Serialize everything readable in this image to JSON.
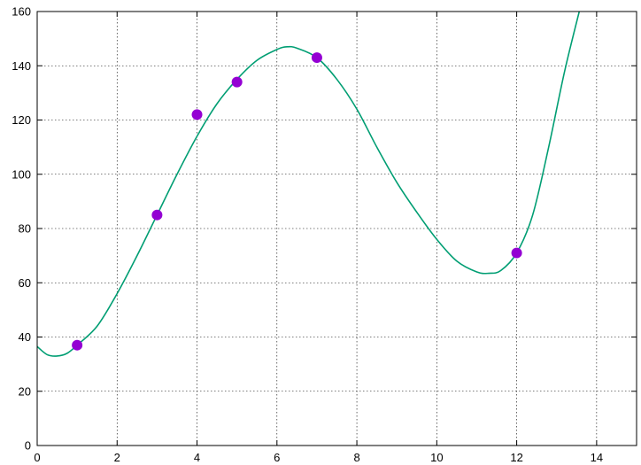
{
  "chart_data": {
    "type": "scatter",
    "title": "",
    "xlabel": "",
    "ylabel": "",
    "xlim": [
      0,
      15
    ],
    "ylim": [
      0,
      160
    ],
    "grid": true,
    "x_ticks": [
      "0",
      "2",
      "4",
      "6",
      "8",
      "10",
      "12",
      "14"
    ],
    "y_ticks": [
      "0",
      "20",
      "40",
      "60",
      "80",
      "100",
      "120",
      "140",
      "160"
    ],
    "series": [
      {
        "type": "scatter",
        "color": "#9400d3",
        "points": [
          {
            "x": 1,
            "y": 37
          },
          {
            "x": 3,
            "y": 85
          },
          {
            "x": 4,
            "y": 122
          },
          {
            "x": 5,
            "y": 134
          },
          {
            "x": 7,
            "y": 143
          },
          {
            "x": 12,
            "y": 71
          }
        ]
      },
      {
        "type": "line",
        "color": "#009e73",
        "points": [
          {
            "x": 0,
            "y": 36.5
          },
          {
            "x": 0.25,
            "y": 33.5
          },
          {
            "x": 0.5,
            "y": 33
          },
          {
            "x": 0.75,
            "y": 34
          },
          {
            "x": 1,
            "y": 37
          },
          {
            "x": 1.5,
            "y": 44
          },
          {
            "x": 2,
            "y": 56
          },
          {
            "x": 2.5,
            "y": 70
          },
          {
            "x": 3,
            "y": 85
          },
          {
            "x": 3.5,
            "y": 100
          },
          {
            "x": 4,
            "y": 114
          },
          {
            "x": 4.5,
            "y": 126
          },
          {
            "x": 5,
            "y": 135
          },
          {
            "x": 5.5,
            "y": 142
          },
          {
            "x": 6,
            "y": 146
          },
          {
            "x": 6.25,
            "y": 147
          },
          {
            "x": 6.5,
            "y": 146.5
          },
          {
            "x": 7,
            "y": 143
          },
          {
            "x": 7.5,
            "y": 135
          },
          {
            "x": 8,
            "y": 124
          },
          {
            "x": 8.5,
            "y": 110
          },
          {
            "x": 9,
            "y": 97
          },
          {
            "x": 9.5,
            "y": 86
          },
          {
            "x": 10,
            "y": 76
          },
          {
            "x": 10.5,
            "y": 68
          },
          {
            "x": 11,
            "y": 64
          },
          {
            "x": 11.3,
            "y": 63.5
          },
          {
            "x": 11.6,
            "y": 64.5
          },
          {
            "x": 12,
            "y": 71
          },
          {
            "x": 12.4,
            "y": 85
          },
          {
            "x": 12.8,
            "y": 110
          },
          {
            "x": 13.2,
            "y": 138
          },
          {
            "x": 13.6,
            "y": 162
          }
        ]
      }
    ]
  }
}
